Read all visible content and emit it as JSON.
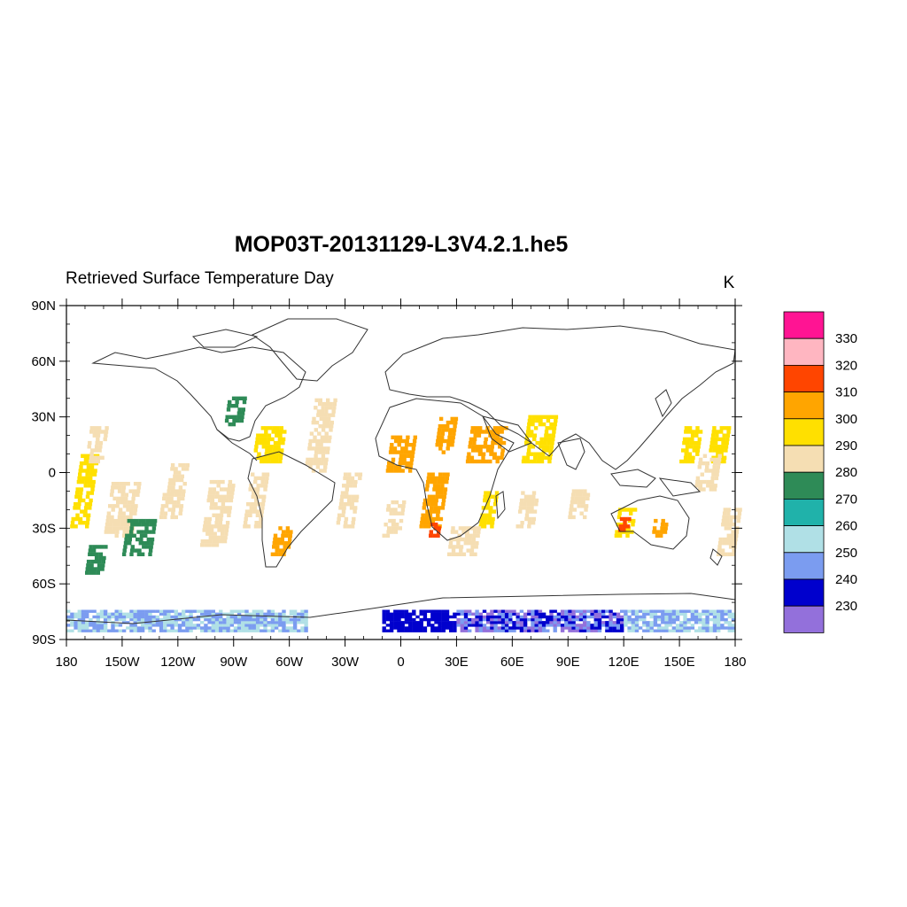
{
  "title": "MOP03T-20131129-L3V4.2.1.he5",
  "subtitle": "Retrieved Surface Temperature Day",
  "units": "K",
  "lat_ticks": [
    "90N",
    "60N",
    "30N",
    "0",
    "30S",
    "60S",
    "90S"
  ],
  "lon_ticks": [
    "180",
    "150W",
    "120W",
    "90W",
    "60W",
    "30W",
    "0",
    "30E",
    "60E",
    "90E",
    "120E",
    "150E",
    "180"
  ],
  "colorbar": {
    "labels": [
      "330",
      "320",
      "310",
      "300",
      "290",
      "280",
      "270",
      "260",
      "250",
      "240",
      "230"
    ],
    "colors": [
      "#ff1493",
      "#ffb6c1",
      "#ff4500",
      "#ffa500",
      "#ffe000",
      "#f5deb3",
      "#2e8b57",
      "#20b2aa",
      "#b0e0e6",
      "#7b9cf0",
      "#0000cd",
      "#9370db"
    ]
  },
  "map_data": {
    "type": "gridded-map",
    "variable": "Retrieved Surface Temperature Day",
    "lon_range": [
      -180,
      180
    ],
    "lat_range": [
      -90,
      90
    ],
    "swaths": [
      {
        "lon": [
          -178,
          -168
        ],
        "lat": [
          -30,
          10
        ],
        "level": 300
      },
      {
        "lon": [
          -170,
          -160
        ],
        "lat": [
          5,
          25
        ],
        "level": 290
      },
      {
        "lon": [
          -160,
          -145
        ],
        "lat": [
          -35,
          -5
        ],
        "level": 290
      },
      {
        "lon": [
          -170,
          -160
        ],
        "lat": [
          -55,
          -40
        ],
        "level": 280
      },
      {
        "lon": [
          -150,
          -135
        ],
        "lat": [
          -45,
          -25
        ],
        "level": 280
      },
      {
        "lon": [
          -130,
          -118
        ],
        "lat": [
          -25,
          5
        ],
        "level": 290
      },
      {
        "lon": [
          -108,
          -95
        ],
        "lat": [
          -40,
          -5
        ],
        "level": 290
      },
      {
        "lon": [
          -95,
          -85
        ],
        "lat": [
          25,
          40
        ],
        "level": 280
      },
      {
        "lon": [
          -80,
          -65
        ],
        "lat": [
          5,
          25
        ],
        "level": 300
      },
      {
        "lon": [
          -85,
          -75
        ],
        "lat": [
          -30,
          0
        ],
        "level": 290
      },
      {
        "lon": [
          -70,
          -60
        ],
        "lat": [
          -45,
          -30
        ],
        "level": 310
      },
      {
        "lon": [
          -52,
          -40
        ],
        "lat": [
          0,
          40
        ],
        "level": 290
      },
      {
        "lon": [
          -35,
          -25
        ],
        "lat": [
          -30,
          0
        ],
        "level": 290
      },
      {
        "lon": [
          -8,
          5
        ],
        "lat": [
          0,
          20
        ],
        "level": 310
      },
      {
        "lon": [
          -10,
          0
        ],
        "lat": [
          -35,
          -15
        ],
        "level": 290
      },
      {
        "lon": [
          18,
          28
        ],
        "lat": [
          10,
          30
        ],
        "level": 310
      },
      {
        "lon": [
          10,
          22
        ],
        "lat": [
          -30,
          0
        ],
        "level": 310
      },
      {
        "lon": [
          15,
          20
        ],
        "lat": [
          -35,
          -28
        ],
        "level": 320
      },
      {
        "lon": [
          35,
          55
        ],
        "lat": [
          5,
          25
        ],
        "level": 310
      },
      {
        "lon": [
          42,
          50
        ],
        "lat": [
          -30,
          -10
        ],
        "level": 300
      },
      {
        "lon": [
          25,
          40
        ],
        "lat": [
          -45,
          -30
        ],
        "level": 290
      },
      {
        "lon": [
          65,
          80
        ],
        "lat": [
          5,
          30
        ],
        "level": 300
      },
      {
        "lon": [
          62,
          72
        ],
        "lat": [
          -30,
          -10
        ],
        "level": 290
      },
      {
        "lon": [
          90,
          100
        ],
        "lat": [
          -25,
          -10
        ],
        "level": 290
      },
      {
        "lon": [
          115,
          125
        ],
        "lat": [
          -35,
          -20
        ],
        "level": 300
      },
      {
        "lon": [
          117,
          122
        ],
        "lat": [
          -32,
          -25
        ],
        "level": 320
      },
      {
        "lon": [
          135,
          142
        ],
        "lat": [
          -35,
          -25
        ],
        "level": 310
      },
      {
        "lon": [
          150,
          160
        ],
        "lat": [
          5,
          25
        ],
        "level": 300
      },
      {
        "lon": [
          165,
          175
        ],
        "lat": [
          5,
          25
        ],
        "level": 300
      },
      {
        "lon": [
          158,
          170
        ],
        "lat": [
          -10,
          10
        ],
        "level": 290
      },
      {
        "lon": [
          170,
          180
        ],
        "lat": [
          -45,
          -20
        ],
        "level": 290
      }
    ],
    "antarctica": [
      {
        "lon": [
          -180,
          -50
        ],
        "lat": [
          -86,
          -74
        ],
        "levels": [
          260,
          250
        ]
      },
      {
        "lon": [
          -10,
          30
        ],
        "lat": [
          -86,
          -74
        ],
        "level": 240
      },
      {
        "lon": [
          30,
          120
        ],
        "lat": [
          -86,
          -74
        ],
        "levels": [
          240,
          250,
          230
        ]
      },
      {
        "lon": [
          120,
          180
        ],
        "lat": [
          -86,
          -74
        ],
        "levels": [
          250,
          260
        ]
      }
    ]
  }
}
